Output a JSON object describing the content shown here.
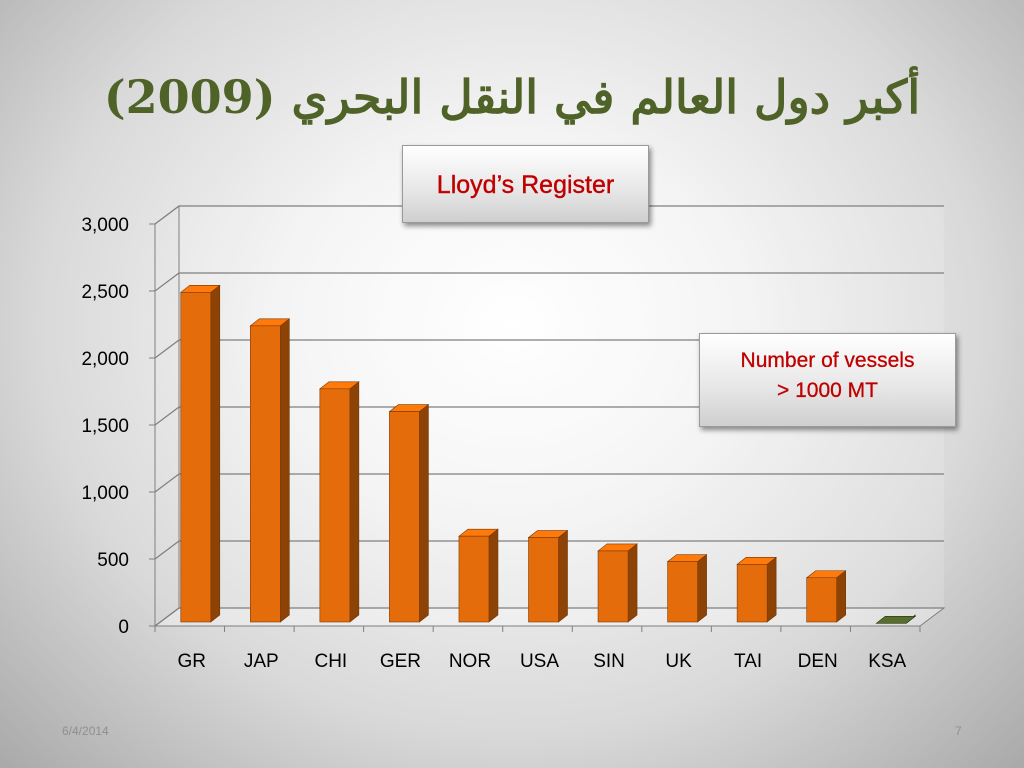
{
  "slide": {
    "title": "أكبر دول العالم في النقل البحري (2009)",
    "date": "6/4/2014",
    "page_number": "7"
  },
  "callouts": {
    "source": "Lloyd’s Register",
    "note_line1": "Number  of  vessels",
    "note_line2": "> 1000 MT"
  },
  "colors": {
    "bar": "#e46c0a",
    "bar_highlight": "#4f6228",
    "title": "#4f6228",
    "callout_text": "#c00000"
  },
  "chart_data": {
    "type": "bar",
    "categories": [
      "GR",
      "JAP",
      "CHI",
      "GER",
      "NOR",
      "USA",
      "SIN",
      "UK",
      "TAI",
      "DEN",
      "KSA"
    ],
    "values": [
      2520,
      2270,
      1800,
      1630,
      700,
      690,
      590,
      510,
      490,
      390,
      50
    ],
    "highlight_category": "KSA",
    "ylim": [
      0,
      3000
    ],
    "yticks": [
      0,
      500,
      1000,
      1500,
      2000,
      2500,
      3000
    ],
    "ytick_labels": [
      "0",
      "500",
      "1,000",
      "1,500",
      "2,000",
      "2,500",
      "3,000"
    ],
    "grid": true,
    "legend": "none",
    "style": "3d"
  }
}
